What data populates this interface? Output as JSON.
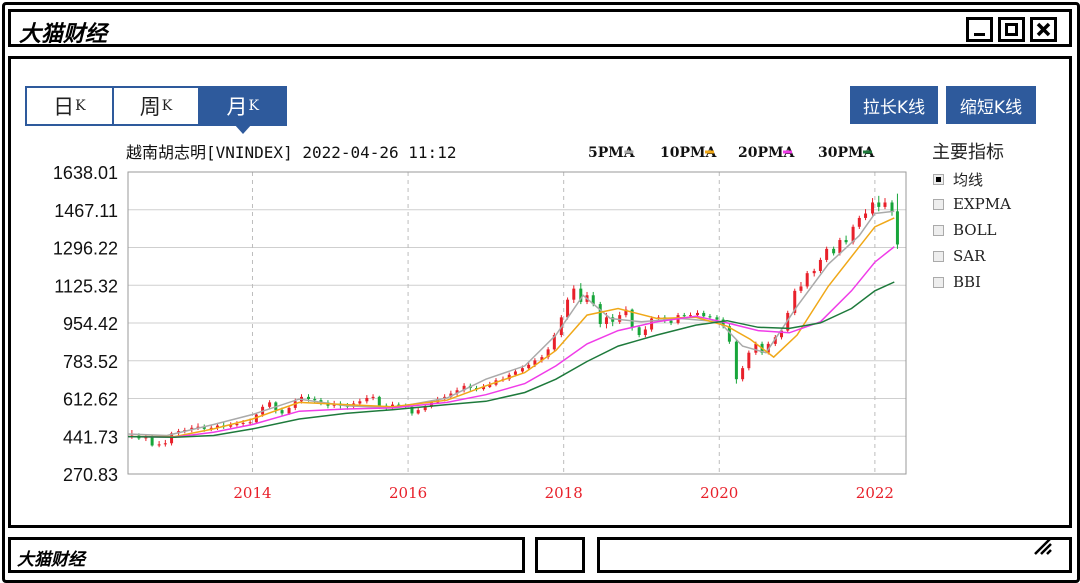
{
  "window": {
    "title": "大猫财经"
  },
  "tabs": [
    {
      "label": "日",
      "suffix": "K"
    },
    {
      "label": "周",
      "suffix": "K"
    },
    {
      "label": "月",
      "suffix": "K"
    }
  ],
  "active_tab": 2,
  "buttons": {
    "zoom_in": "拉长K线",
    "zoom_out": "缩短K线"
  },
  "indicators": {
    "title": "主要指标",
    "items": [
      {
        "label": "均线",
        "checked": true
      },
      {
        "label": "EXPMA",
        "checked": false
      },
      {
        "label": "BOLL",
        "checked": false
      },
      {
        "label": "SAR",
        "checked": false
      },
      {
        "label": "BBI",
        "checked": false
      }
    ]
  },
  "status": {
    "left": "大猫财经"
  },
  "colors": {
    "up": "#e8202a",
    "down": "#17a53a",
    "accent": "#2e5a9c"
  },
  "chart_data": {
    "type": "line",
    "title": "越南胡志明[VNINDEX] 2022-04-26 11:12",
    "legend_position": "top-right",
    "legend": [
      {
        "label": "5PMA",
        "color": "#aaaaaa"
      },
      {
        "label": "10PMA",
        "color": "#f0a818"
      },
      {
        "label": "20PMA",
        "color": "#f03ce8"
      },
      {
        "label": "30PMA",
        "color": "#1e7a3c"
      }
    ],
    "y_ticks": [
      "1638.01",
      "1467.11",
      "1296.22",
      "1125.32",
      "954.42",
      "783.52",
      "612.62",
      "441.73",
      "270.83"
    ],
    "ylim": [
      270.83,
      1638.01
    ],
    "x_ticks": [
      {
        "label": "2014",
        "x": 2014.0
      },
      {
        "label": "2016",
        "x": 2016.0
      },
      {
        "label": "2018",
        "x": 2018.0
      },
      {
        "label": "2020",
        "x": 2020.0
      },
      {
        "label": "2022",
        "x": 2022.0
      }
    ],
    "xlim": [
      2012.4,
      2022.4
    ],
    "grid": true,
    "series": [
      {
        "color": "#aaaaaa",
        "points": [
          [
            2012.4,
            452
          ],
          [
            2012.9,
            445
          ],
          [
            2013.5,
            495
          ],
          [
            2014.0,
            540
          ],
          [
            2014.6,
            610
          ],
          [
            2015.2,
            580
          ],
          [
            2015.8,
            570
          ],
          [
            2016.5,
            615
          ],
          [
            2017.0,
            700
          ],
          [
            2017.5,
            760
          ],
          [
            2017.9,
            900
          ],
          [
            2018.25,
            1080
          ],
          [
            2018.6,
            975
          ],
          [
            2019.0,
            960
          ],
          [
            2019.5,
            975
          ],
          [
            2020.0,
            960
          ],
          [
            2020.3,
            850
          ],
          [
            2020.6,
            820
          ],
          [
            2021.0,
            1030
          ],
          [
            2021.4,
            1220
          ],
          [
            2021.8,
            1350
          ],
          [
            2022.0,
            1450
          ],
          [
            2022.25,
            1460
          ]
        ]
      },
      {
        "color": "#f0a818",
        "points": [
          [
            2012.4,
            440
          ],
          [
            2013.0,
            440
          ],
          [
            2013.5,
            475
          ],
          [
            2014.0,
            520
          ],
          [
            2014.6,
            595
          ],
          [
            2015.2,
            585
          ],
          [
            2015.8,
            575
          ],
          [
            2016.5,
            605
          ],
          [
            2017.0,
            670
          ],
          [
            2017.5,
            730
          ],
          [
            2017.9,
            830
          ],
          [
            2018.3,
            990
          ],
          [
            2018.7,
            1020
          ],
          [
            2019.2,
            975
          ],
          [
            2019.7,
            980
          ],
          [
            2020.1,
            940
          ],
          [
            2020.4,
            880
          ],
          [
            2020.7,
            800
          ],
          [
            2021.0,
            900
          ],
          [
            2021.4,
            1120
          ],
          [
            2021.8,
            1300
          ],
          [
            2022.0,
            1390
          ],
          [
            2022.25,
            1430
          ]
        ]
      },
      {
        "color": "#f03ce8",
        "points": [
          [
            2012.4,
            440
          ],
          [
            2013.0,
            438
          ],
          [
            2013.5,
            460
          ],
          [
            2014.0,
            495
          ],
          [
            2014.6,
            555
          ],
          [
            2015.2,
            565
          ],
          [
            2015.8,
            570
          ],
          [
            2016.5,
            595
          ],
          [
            2017.0,
            630
          ],
          [
            2017.5,
            680
          ],
          [
            2017.9,
            760
          ],
          [
            2018.3,
            860
          ],
          [
            2018.7,
            920
          ],
          [
            2019.2,
            960
          ],
          [
            2019.7,
            985
          ],
          [
            2020.1,
            955
          ],
          [
            2020.5,
            920
          ],
          [
            2020.9,
            910
          ],
          [
            2021.3,
            960
          ],
          [
            2021.7,
            1100
          ],
          [
            2022.0,
            1230
          ],
          [
            2022.25,
            1300
          ]
        ]
      },
      {
        "color": "#1e7a3c",
        "points": [
          [
            2012.4,
            440
          ],
          [
            2013.0,
            437
          ],
          [
            2013.5,
            445
          ],
          [
            2014.0,
            475
          ],
          [
            2014.6,
            520
          ],
          [
            2015.2,
            545
          ],
          [
            2015.8,
            562
          ],
          [
            2016.5,
            585
          ],
          [
            2017.0,
            600
          ],
          [
            2017.5,
            640
          ],
          [
            2017.9,
            700
          ],
          [
            2018.3,
            780
          ],
          [
            2018.7,
            850
          ],
          [
            2019.2,
            900
          ],
          [
            2019.7,
            945
          ],
          [
            2020.1,
            965
          ],
          [
            2020.5,
            935
          ],
          [
            2020.9,
            930
          ],
          [
            2021.3,
            955
          ],
          [
            2021.7,
            1020
          ],
          [
            2022.0,
            1100
          ],
          [
            2022.25,
            1140
          ]
        ]
      }
    ],
    "candles": [
      [
        2012.45,
        440,
        445,
        470,
        430
      ],
      [
        2012.54,
        445,
        432,
        455,
        425
      ],
      [
        2012.63,
        432,
        440,
        448,
        420
      ],
      [
        2012.71,
        440,
        400,
        445,
        395
      ],
      [
        2012.8,
        400,
        405,
        420,
        392
      ],
      [
        2012.88,
        405,
        410,
        425,
        395
      ],
      [
        2012.96,
        410,
        455,
        462,
        400
      ],
      [
        2013.05,
        455,
        465,
        475,
        445
      ],
      [
        2013.13,
        465,
        470,
        480,
        455
      ],
      [
        2013.22,
        470,
        480,
        492,
        460
      ],
      [
        2013.3,
        480,
        485,
        500,
        470
      ],
      [
        2013.38,
        485,
        475,
        495,
        462
      ],
      [
        2013.47,
        475,
        480,
        495,
        465
      ],
      [
        2013.55,
        480,
        490,
        502,
        470
      ],
      [
        2013.63,
        490,
        485,
        505,
        475
      ],
      [
        2013.72,
        485,
        492,
        505,
        478
      ],
      [
        2013.8,
        492,
        498,
        510,
        485
      ],
      [
        2013.88,
        498,
        502,
        515,
        488
      ],
      [
        2013.97,
        502,
        505,
        522,
        490
      ],
      [
        2014.05,
        505,
        540,
        548,
        498
      ],
      [
        2014.13,
        540,
        575,
        585,
        530
      ],
      [
        2014.22,
        575,
        595,
        605,
        565
      ],
      [
        2014.3,
        595,
        560,
        600,
        545
      ],
      [
        2014.38,
        560,
        545,
        572,
        535
      ],
      [
        2014.47,
        545,
        570,
        580,
        538
      ],
      [
        2014.55,
        570,
        600,
        612,
        560
      ],
      [
        2014.63,
        600,
        620,
        632,
        590
      ],
      [
        2014.72,
        620,
        610,
        632,
        598
      ],
      [
        2014.8,
        610,
        605,
        622,
        592
      ],
      [
        2014.88,
        605,
        595,
        615,
        582
      ],
      [
        2014.97,
        595,
        580,
        605,
        568
      ],
      [
        2015.05,
        580,
        590,
        602,
        570
      ],
      [
        2015.13,
        590,
        580,
        600,
        568
      ],
      [
        2015.22,
        580,
        575,
        592,
        562
      ],
      [
        2015.3,
        575,
        590,
        602,
        565
      ],
      [
        2015.38,
        590,
        600,
        612,
        580
      ],
      [
        2015.47,
        600,
        615,
        628,
        590
      ],
      [
        2015.55,
        615,
        620,
        632,
        605
      ],
      [
        2015.63,
        620,
        580,
        625,
        565
      ],
      [
        2015.72,
        580,
        570,
        590,
        560
      ],
      [
        2015.8,
        570,
        585,
        598,
        562
      ],
      [
        2015.88,
        585,
        580,
        595,
        570
      ],
      [
        2015.97,
        580,
        575,
        590,
        565
      ],
      [
        2016.05,
        575,
        545,
        580,
        535
      ],
      [
        2016.13,
        545,
        560,
        570,
        540
      ],
      [
        2016.22,
        560,
        575,
        585,
        552
      ],
      [
        2016.3,
        575,
        595,
        605,
        568
      ],
      [
        2016.38,
        595,
        610,
        620,
        590
      ],
      [
        2016.47,
        610,
        620,
        632,
        600
      ],
      [
        2016.55,
        620,
        635,
        648,
        610
      ],
      [
        2016.63,
        635,
        650,
        662,
        625
      ],
      [
        2016.72,
        650,
        670,
        682,
        640
      ],
      [
        2016.8,
        670,
        660,
        680,
        648
      ],
      [
        2016.88,
        660,
        655,
        670,
        645
      ],
      [
        2016.97,
        655,
        665,
        678,
        648
      ],
      [
        2017.05,
        665,
        675,
        688,
        660
      ],
      [
        2017.13,
        675,
        695,
        705,
        668
      ],
      [
        2017.22,
        695,
        700,
        712,
        688
      ],
      [
        2017.3,
        700,
        720,
        730,
        692
      ],
      [
        2017.38,
        720,
        735,
        745,
        712
      ],
      [
        2017.47,
        735,
        750,
        762,
        725
      ],
      [
        2017.55,
        750,
        765,
        778,
        740
      ],
      [
        2017.63,
        765,
        785,
        795,
        755
      ],
      [
        2017.72,
        785,
        800,
        810,
        775
      ],
      [
        2017.8,
        800,
        835,
        845,
        790
      ],
      [
        2017.88,
        835,
        900,
        910,
        825
      ],
      [
        2017.97,
        900,
        980,
        990,
        890
      ],
      [
        2018.05,
        980,
        1060,
        1070,
        970
      ],
      [
        2018.13,
        1060,
        1110,
        1125,
        1045
      ],
      [
        2018.22,
        1110,
        1050,
        1135,
        1040
      ],
      [
        2018.3,
        1050,
        1080,
        1095,
        1040
      ],
      [
        2018.38,
        1080,
        1040,
        1095,
        1030
      ],
      [
        2018.47,
        1040,
        950,
        1050,
        935
      ],
      [
        2018.55,
        950,
        980,
        1000,
        930
      ],
      [
        2018.63,
        980,
        960,
        995,
        940
      ],
      [
        2018.72,
        960,
        990,
        1005,
        950
      ],
      [
        2018.8,
        990,
        1015,
        1030,
        980
      ],
      [
        2018.88,
        1015,
        935,
        1020,
        920
      ],
      [
        2018.97,
        935,
        900,
        945,
        890
      ],
      [
        2019.05,
        900,
        925,
        940,
        890
      ],
      [
        2019.13,
        925,
        975,
        985,
        915
      ],
      [
        2019.22,
        975,
        980,
        990,
        965
      ],
      [
        2019.3,
        980,
        965,
        990,
        955
      ],
      [
        2019.38,
        965,
        955,
        975,
        945
      ],
      [
        2019.47,
        955,
        990,
        1000,
        948
      ],
      [
        2019.55,
        990,
        985,
        1000,
        975
      ],
      [
        2019.63,
        985,
        990,
        1002,
        978
      ],
      [
        2019.72,
        990,
        1000,
        1012,
        982
      ],
      [
        2019.8,
        1000,
        985,
        1010,
        975
      ],
      [
        2019.88,
        985,
        980,
        995,
        970
      ],
      [
        2019.97,
        980,
        970,
        990,
        962
      ],
      [
        2020.05,
        970,
        940,
        980,
        930
      ],
      [
        2020.13,
        940,
        870,
        950,
        860
      ],
      [
        2020.22,
        870,
        700,
        880,
        680
      ],
      [
        2020.3,
        700,
        750,
        760,
        690
      ],
      [
        2020.38,
        750,
        820,
        830,
        740
      ],
      [
        2020.47,
        820,
        860,
        870,
        810
      ],
      [
        2020.55,
        860,
        820,
        870,
        810
      ],
      [
        2020.63,
        820,
        860,
        870,
        812
      ],
      [
        2020.72,
        860,
        890,
        900,
        850
      ],
      [
        2020.8,
        890,
        920,
        930,
        880
      ],
      [
        2020.88,
        920,
        1000,
        1010,
        910
      ],
      [
        2020.97,
        1000,
        1100,
        1110,
        990
      ],
      [
        2021.05,
        1100,
        1120,
        1140,
        1090
      ],
      [
        2021.13,
        1120,
        1180,
        1190,
        1110
      ],
      [
        2021.22,
        1180,
        1190,
        1200,
        1165
      ],
      [
        2021.3,
        1190,
        1240,
        1250,
        1180
      ],
      [
        2021.38,
        1240,
        1290,
        1300,
        1230
      ],
      [
        2021.47,
        1290,
        1270,
        1300,
        1260
      ],
      [
        2021.55,
        1270,
        1330,
        1340,
        1260
      ],
      [
        2021.63,
        1330,
        1320,
        1350,
        1310
      ],
      [
        2021.72,
        1320,
        1390,
        1400,
        1310
      ],
      [
        2021.8,
        1390,
        1430,
        1440,
        1380
      ],
      [
        2021.88,
        1430,
        1450,
        1470,
        1420
      ],
      [
        2021.97,
        1450,
        1500,
        1520,
        1440
      ],
      [
        2022.05,
        1500,
        1480,
        1530,
        1460
      ],
      [
        2022.13,
        1480,
        1500,
        1520,
        1470
      ],
      [
        2022.22,
        1500,
        1460,
        1510,
        1440
      ],
      [
        2022.29,
        1460,
        1310,
        1540,
        1290
      ]
    ]
  }
}
